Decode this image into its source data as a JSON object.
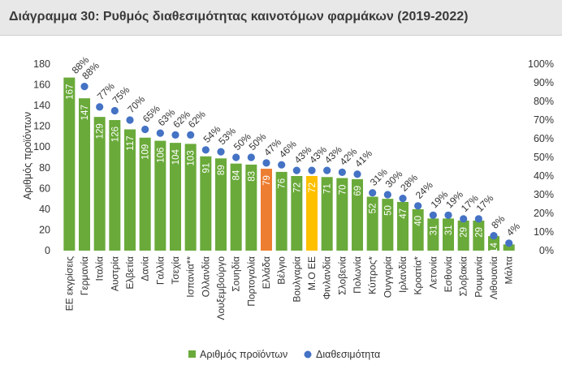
{
  "title": "Διάγραμμα 30: Ρυθμός διαθεσιμότητας καινοτόμων φαρμάκων (2019-2022)",
  "colors": {
    "bar": "#6aaa3a",
    "bar_greece": "#ed7d31",
    "bar_average": "#ffc000",
    "dot": "#4472c4",
    "title_bg": "#e8e8e8"
  },
  "chart_data": {
    "type": "bar",
    "title": "Διάγραμμα 30: Ρυθμός διαθεσιμότητας καινοτόμων φαρμάκων (2019-2022)",
    "xlabel": "",
    "ylabel": "Αριθμός προϊόντων",
    "ylim": [
      0,
      180
    ],
    "y_ticks": [
      "0",
      "20",
      "40",
      "60",
      "80",
      "100",
      "120",
      "140",
      "160",
      "180"
    ],
    "y2lim": [
      0,
      100
    ],
    "y2_ticks": [
      "0%",
      "10%",
      "20%",
      "30%",
      "40%",
      "50%",
      "60%",
      "70%",
      "80%",
      "90%",
      "100%"
    ],
    "grid": false,
    "legend_position": "bottom",
    "categories": [
      "ΕΕ εκγρίσεις",
      "Γερμανία",
      "Ιταλία",
      "Αυστρία",
      "Ελβετία",
      "Δανία",
      "Γαλλία",
      "Τσεχία",
      "Ισπανία**",
      "Ολλανδία",
      "Λουξεμβούργο",
      "Σουηδία",
      "Πορτογαλία",
      "Ελλάδα",
      "Βέλγιο",
      "Βουλγαρία",
      "Μ.Ο ΕΕ",
      "Φινλανδία",
      "Σλοβενία",
      "Πολωνία",
      "Κύπρος*",
      "Ουγγαρία",
      "Ιρλανδία",
      "Κροατία*",
      "Λετονία",
      "Εσθονία",
      "Σλοβακία",
      "Ρουμανία",
      "Λιθουανία",
      "Μάλτα"
    ],
    "series": [
      {
        "name": "Αριθμός προϊόντων",
        "type": "bar",
        "axis": "left",
        "values": [
          167,
          147,
          129,
          126,
          117,
          109,
          106,
          104,
          103,
          91,
          89,
          84,
          83,
          79,
          76,
          72,
          72,
          71,
          70,
          69,
          52,
          50,
          47,
          40,
          31,
          31,
          29,
          29,
          14,
          6
        ]
      },
      {
        "name": "Διαθεσιμότητα",
        "type": "scatter",
        "axis": "right",
        "values": [
          null,
          88,
          77,
          75,
          70,
          65,
          63,
          62,
          62,
          54,
          53,
          50,
          50,
          47,
          46,
          43,
          43,
          43,
          42,
          41,
          31,
          30,
          28,
          24,
          19,
          19,
          17,
          17,
          8,
          4
        ]
      }
    ],
    "first_point_label": "88%",
    "highlight": {
      "Ελλάδα": "bar_greece",
      "Μ.Ο ΕΕ": "bar_average"
    }
  }
}
